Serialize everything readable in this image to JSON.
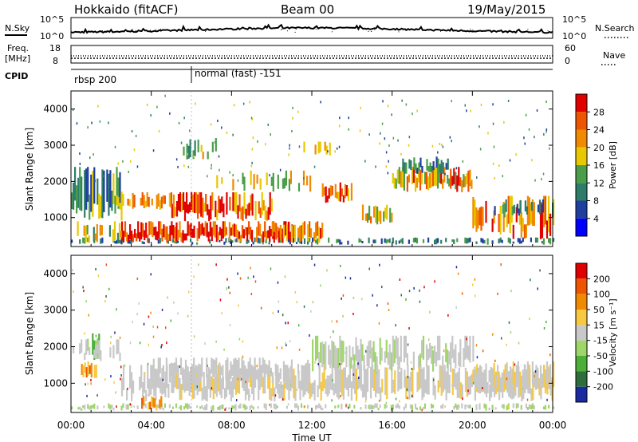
{
  "header": {
    "title": "Hokkaido (fitACF)",
    "beam": "Beam 00",
    "date": "19/May/2015"
  },
  "top_panels": {
    "nsky_label": "N.Sky",
    "nsearch_label": "N.Search",
    "noise_ticks": [
      "10^5",
      "10^0"
    ],
    "freq_label": "Freq.",
    "freq_unit": "[MHz]",
    "freq_ticks": [
      "18",
      "8"
    ],
    "nave_label": "Nave",
    "nave_ticks": [
      "60",
      "0"
    ],
    "cpid_label": "CPID",
    "cpid_segments": [
      {
        "label": "rbsp 200",
        "start_hour": 0
      },
      {
        "label": "normal (fast) -151",
        "start_hour": 6
      }
    ]
  },
  "colors": {
    "power_scale": [
      "#0000ff",
      "#1f3f9f",
      "#2e7d6a",
      "#4a9e4a",
      "#e8c800",
      "#f08a00",
      "#ee5500",
      "#e00000"
    ],
    "velocity_scale": [
      "#1a2aa0",
      "#2e6e3a",
      "#4caf3a",
      "#9ed66a",
      "#c8c8c8",
      "#f7c840",
      "#f08a00",
      "#ee5500",
      "#e00000"
    ]
  },
  "chart_data": [
    {
      "type": "heatmap",
      "name": "power",
      "ylabel": "Slant Range [km]",
      "xlabel": "",
      "ylim": [
        200,
        4500
      ],
      "yticks": [
        "1000",
        "2000",
        "3000",
        "4000"
      ],
      "xticks": [
        "00:00",
        "04:00",
        "08:00",
        "12:00",
        "16:00",
        "20:00",
        "00:00"
      ],
      "colorbar_label": "Power [dB]",
      "colorbar_ticks": [
        "28",
        "24",
        "20",
        "16",
        "12",
        "8",
        "4"
      ]
    },
    {
      "type": "heatmap",
      "name": "velocity",
      "ylabel": "Slant Range [km]",
      "xlabel": "Time UT",
      "ylim": [
        200,
        4500
      ],
      "yticks": [
        "1000",
        "2000",
        "3000",
        "4000"
      ],
      "xticks": [
        "00:00",
        "04:00",
        "08:00",
        "12:00",
        "16:00",
        "20:00",
        "00:00"
      ],
      "colorbar_label": "Velocity [m s⁻¹]",
      "colorbar_ticks": [
        "200",
        "100",
        "50",
        "15",
        "-15",
        "-50",
        "-100",
        "-200"
      ]
    }
  ]
}
